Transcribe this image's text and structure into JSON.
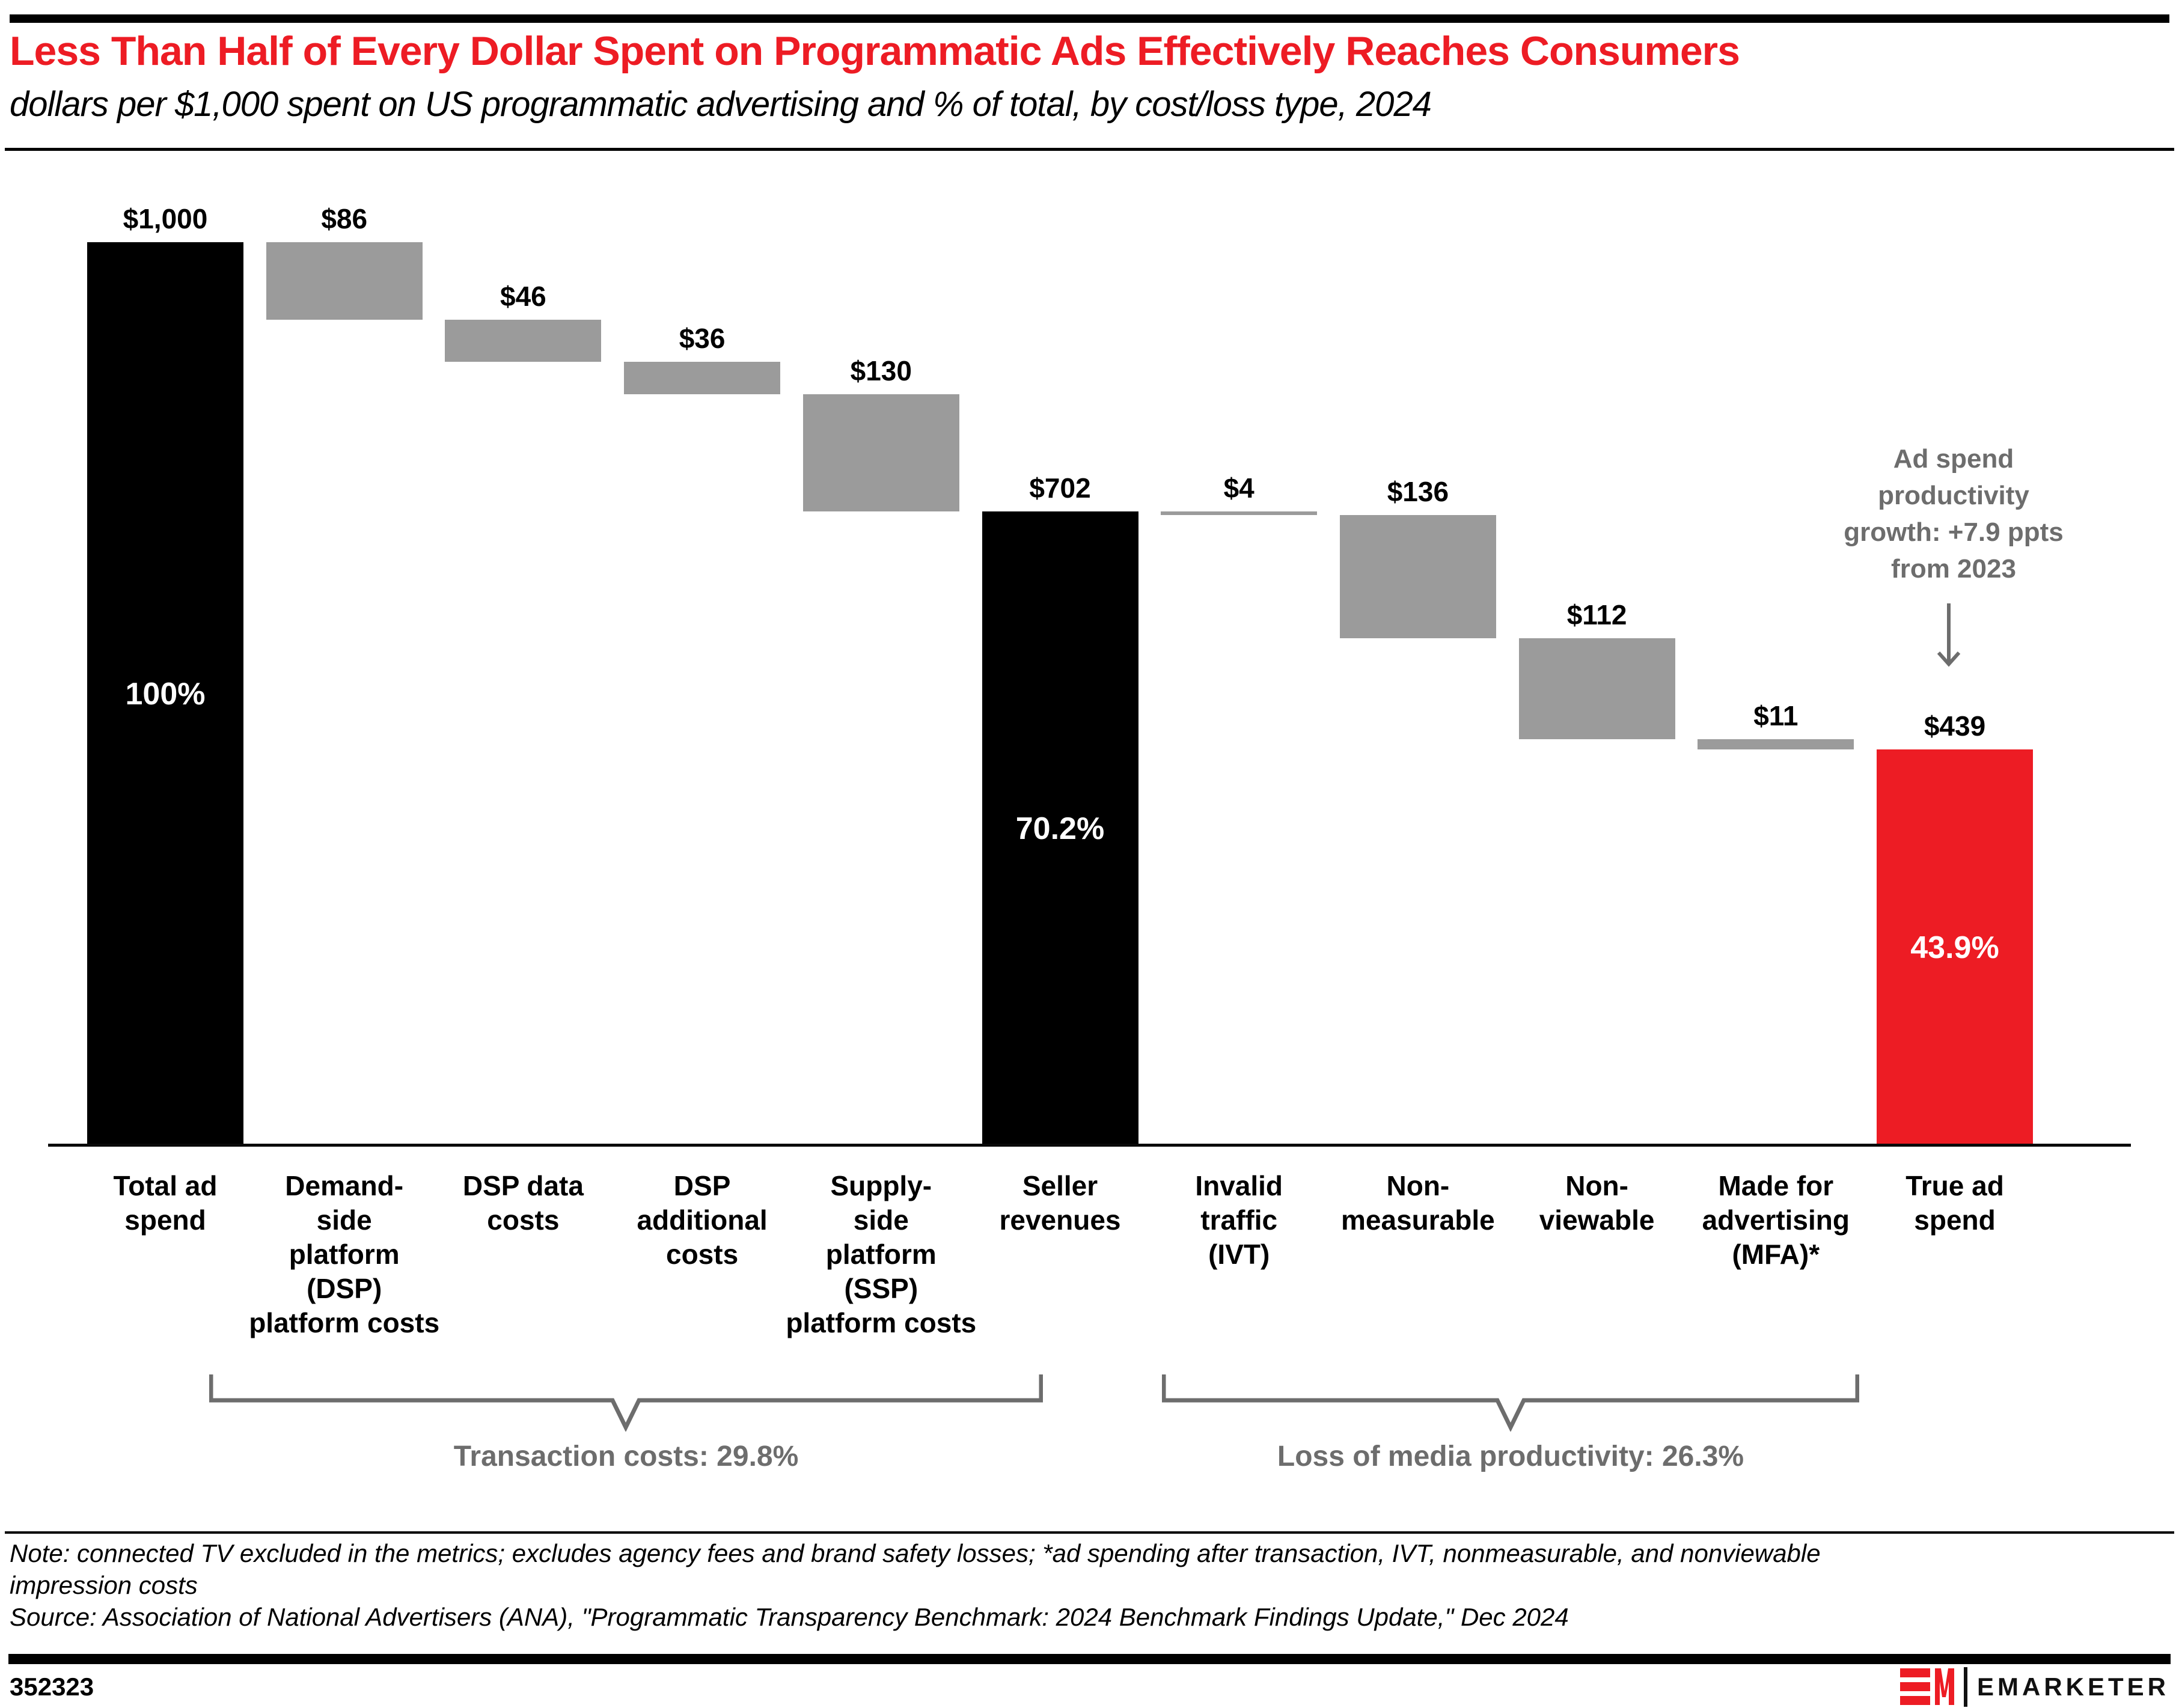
{
  "header": {
    "title": "Less Than Half of Every Dollar Spent on Programmatic Ads Effectively Reaches Consumers",
    "subtitle": "dollars per $1,000 spent on US programmatic advertising and % of total, by cost/loss type, 2024"
  },
  "chart_data": {
    "type": "bar",
    "subtype": "waterfall",
    "title": "Less Than Half of Every Dollar Spent on Programmatic Ads Effectively Reaches Consumers",
    "unit": "dollars per $1,000 spent on US programmatic advertising",
    "year": "2024",
    "ylim": [
      0,
      1000
    ],
    "grid": false,
    "palette": {
      "black": "#000000",
      "gray": "#9b9b9b",
      "red": "#ed1c24",
      "annotation_gray": "#6d6d6d"
    },
    "categories": [
      "Total ad spend",
      "Demand-side platform (DSP) platform costs",
      "DSP data costs",
      "DSP additional costs",
      "Supply-side platform (SSP) platform costs",
      "Seller revenues",
      "Invalid traffic (IVT)",
      "Non-measurable",
      "Non-viewable",
      "Made for advertising (MFA)*",
      "True ad spend"
    ],
    "bars": [
      {
        "label": "Total ad\nspend",
        "value": 1000,
        "value_label": "$1,000",
        "start": 0,
        "end": 1000,
        "color": "black",
        "pct_label": "100%"
      },
      {
        "label": "Demand-\nside\nplatform\n(DSP)\nplatform costs",
        "value": 86,
        "value_label": "$86",
        "start": 1000,
        "end": 914,
        "color": "gray"
      },
      {
        "label": "DSP data\ncosts",
        "value": 46,
        "value_label": "$46",
        "start": 914,
        "end": 868,
        "color": "gray"
      },
      {
        "label": "DSP\nadditional\ncosts",
        "value": 36,
        "value_label": "$36",
        "start": 868,
        "end": 832,
        "color": "gray"
      },
      {
        "label": "Supply-\nside\nplatform\n(SSP)\nplatform costs",
        "value": 130,
        "value_label": "$130",
        "start": 832,
        "end": 702,
        "color": "gray"
      },
      {
        "label": "Seller\nrevenues",
        "value": 702,
        "value_label": "$702",
        "start": 702,
        "end": 0,
        "color": "black",
        "pct_label": "70.2%"
      },
      {
        "label": "Invalid\ntraffic\n(IVT)",
        "value": 4,
        "value_label": "$4",
        "start": 702,
        "end": 698,
        "color": "gray"
      },
      {
        "label": "Non-\nmeasurable",
        "value": 136,
        "value_label": "$136",
        "start": 698,
        "end": 562,
        "color": "gray"
      },
      {
        "label": "Non-\nviewable",
        "value": 112,
        "value_label": "$112",
        "start": 562,
        "end": 450,
        "color": "gray"
      },
      {
        "label": "Made for\nadvertising\n(MFA)*",
        "value": 11,
        "value_label": "$11",
        "start": 450,
        "end": 439,
        "color": "gray"
      },
      {
        "label": "True ad\nspend",
        "value": 439,
        "value_label": "$439",
        "start": 439,
        "end": 0,
        "color": "red",
        "pct_label": "43.9%"
      }
    ],
    "braces": [
      {
        "label": "Transaction costs: 29.8%",
        "spans": "Demand-side platform (DSP) platform costs through Supply-side platform (SSP) platform costs"
      },
      {
        "label": "Loss of media productivity: 26.3%",
        "spans": "Invalid traffic (IVT) through Made for advertising (MFA)*"
      }
    ],
    "annotation": {
      "text": "Ad spend\nproductivity\ngrowth: +7.9 ppts\nfrom 2023",
      "arrow": "down",
      "points_to": "True ad spend"
    }
  },
  "footnote": {
    "note": "Note: connected TV excluded in the metrics; excludes agency fees and brand safety losses; *ad spending after transaction, IVT, nonmeasurable, and nonviewable\nimpression costs",
    "source": "Source: Association of National Advertisers (ANA), \"Programmatic Transparency Benchmark: 2024 Benchmark Findings Update,\" Dec 2024"
  },
  "footer": {
    "chart_id": "352323",
    "logo_mark": "EM",
    "brand": "EMARKETER"
  }
}
